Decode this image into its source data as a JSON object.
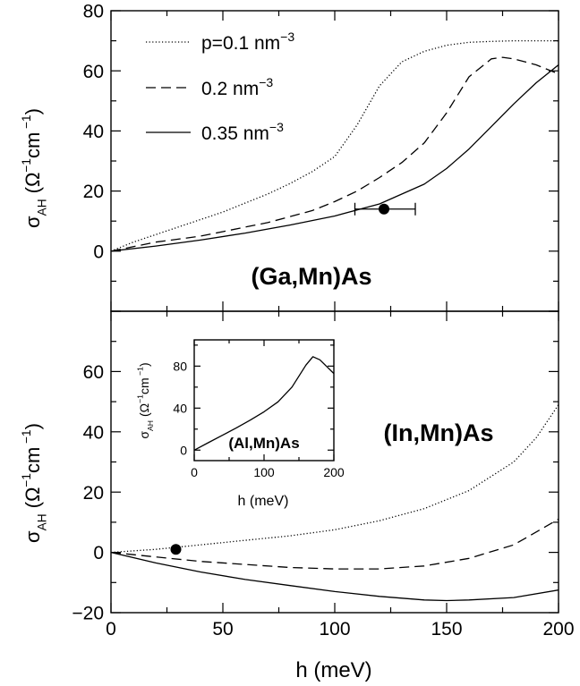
{
  "chart_data": [
    {
      "type": "line",
      "panel": "top",
      "xlim": [
        0,
        200
      ],
      "ylim": [
        -20,
        80
      ],
      "x_ticks": [
        0,
        50,
        100,
        150,
        200
      ],
      "y_ticks": [
        0,
        20,
        40,
        60,
        80
      ],
      "y_tick_labels": [
        "0",
        "20",
        "40",
        "60",
        "80"
      ],
      "ylabel": "σ_AH (Ω^-1 cm^-1)",
      "annotation": "(Ga,Mn)As",
      "legend": {
        "placement": "top-left",
        "entries": [
          {
            "label": "p=0.1 nm",
            "sup": "−3",
            "style": "dotted"
          },
          {
            "label": "0.2 nm",
            "sup": "−3",
            "style": "dashed"
          },
          {
            "label": "0.35 nm",
            "sup": "−3",
            "style": "solid"
          }
        ]
      },
      "series": [
        {
          "style": "dotted",
          "x": [
            0,
            10,
            20,
            30,
            40,
            50,
            60,
            70,
            80,
            90,
            100,
            110,
            120,
            130,
            140,
            150,
            160,
            170,
            180,
            190,
            200
          ],
          "y": [
            0,
            3,
            5.5,
            8,
            10.5,
            13,
            16,
            19,
            22.5,
            26.5,
            31.5,
            42,
            55,
            63,
            66.5,
            68.5,
            69.5,
            69.8,
            70,
            70,
            70
          ]
        },
        {
          "style": "dashed",
          "x": [
            0,
            10,
            20,
            30,
            40,
            50,
            60,
            70,
            80,
            90,
            100,
            110,
            120,
            130,
            140,
            150,
            160,
            170,
            175,
            180,
            190,
            200
          ],
          "y": [
            0,
            1.5,
            3,
            4,
            5,
            6.5,
            8,
            9.5,
            11.5,
            13.5,
            16.5,
            20,
            24.5,
            29.5,
            36,
            46,
            58,
            64,
            64.5,
            64,
            62,
            59
          ]
        },
        {
          "style": "solid",
          "x": [
            0,
            20,
            40,
            60,
            80,
            100,
            120,
            140,
            150,
            160,
            170,
            180,
            190,
            200
          ],
          "y": [
            0,
            1.7,
            3.7,
            6,
            8.7,
            11.7,
            15.7,
            22.3,
            27.5,
            34,
            41.5,
            49,
            56,
            62
          ]
        }
      ],
      "markers": [
        {
          "x": 122,
          "y": 14,
          "xerr": [
            109,
            136
          ]
        }
      ]
    },
    {
      "type": "line",
      "panel": "bottom",
      "xlabel": "h (meV)",
      "xlim": [
        0,
        200
      ],
      "ylim": [
        -20,
        80
      ],
      "x_ticks": [
        0,
        50,
        100,
        150,
        200
      ],
      "x_tick_labels": [
        "0",
        "50",
        "100",
        "150",
        "200"
      ],
      "y_ticks": [
        -20,
        0,
        20,
        40,
        60
      ],
      "y_tick_labels": [
        "−20",
        "0",
        "20",
        "40",
        "60"
      ],
      "ylabel": "σ_AH (Ω^-1 cm^-1)",
      "annotation": "(In,Mn)As",
      "series": [
        {
          "style": "dotted",
          "x": [
            0,
            20,
            40,
            60,
            80,
            100,
            120,
            140,
            160,
            180,
            190,
            200
          ],
          "y": [
            0,
            1,
            2.5,
            4,
            5.5,
            7.5,
            10.5,
            14.5,
            20.5,
            30,
            38,
            49
          ]
        },
        {
          "style": "dashed",
          "x": [
            0,
            20,
            40,
            60,
            80,
            100,
            120,
            140,
            160,
            180,
            200
          ],
          "y": [
            0,
            -1.5,
            -3,
            -4,
            -5,
            -5.5,
            -5.5,
            -4.5,
            -2,
            2.5,
            11
          ]
        },
        {
          "style": "solid",
          "x": [
            0,
            20,
            40,
            60,
            80,
            100,
            120,
            140,
            150,
            160,
            180,
            200
          ],
          "y": [
            0,
            -3.5,
            -6.5,
            -9,
            -11,
            -13,
            -14.6,
            -15.8,
            -16,
            -15.8,
            -15,
            -12.5
          ]
        }
      ],
      "markers": [
        {
          "x": 29,
          "y": 1
        }
      ]
    },
    {
      "type": "line",
      "panel": "inset",
      "xlabel": "h (meV)",
      "xlim": [
        0,
        200
      ],
      "ylim": [
        -10,
        105
      ],
      "x_ticks": [
        0,
        100,
        200
      ],
      "x_tick_labels": [
        "0",
        "100",
        "200"
      ],
      "y_ticks": [
        0,
        40,
        80
      ],
      "y_tick_labels": [
        "0",
        "40",
        "80"
      ],
      "ylabel": "σ_AH (Ω^-1 cm^-1)",
      "annotation": "(Al,Mn)As",
      "series": [
        {
          "style": "solid",
          "x": [
            0,
            20,
            40,
            60,
            80,
            100,
            120,
            140,
            160,
            170,
            180,
            200
          ],
          "y": [
            0,
            7,
            14,
            21,
            28.5,
            36.5,
            46,
            60,
            81,
            89,
            86,
            73
          ]
        }
      ]
    }
  ]
}
